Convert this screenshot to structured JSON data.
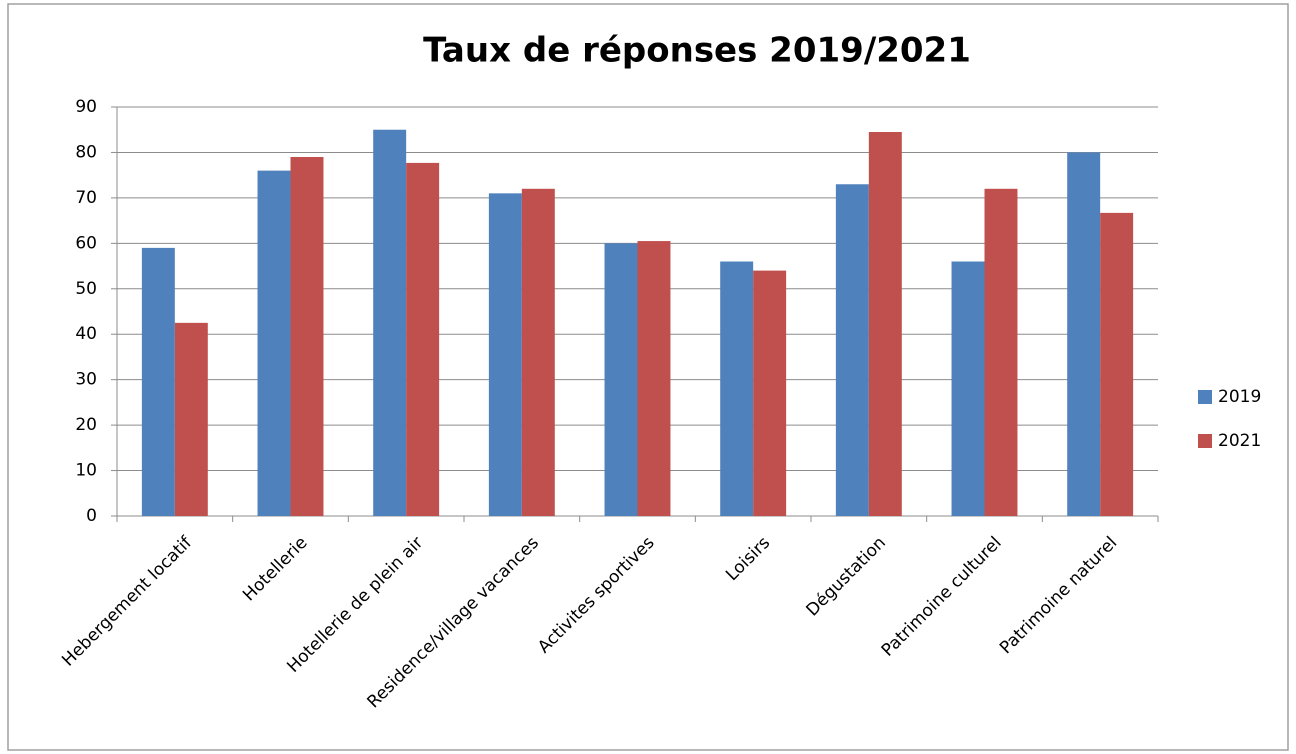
{
  "chart_data": {
    "type": "bar",
    "title": "Taux de réponses 2019/2021",
    "categories": [
      "Hebergement locatif",
      "Hotellerie",
      "Hotellerie de plein air",
      "Residence/village vacances",
      "Activites sportives",
      "Loisirs",
      "Dégustation",
      "Patrimoine culturel",
      "Patrimoine naturel"
    ],
    "series": [
      {
        "name": "2019",
        "color": "#4f81bd",
        "values": [
          59,
          76,
          85,
          71,
          60,
          56,
          73,
          56,
          80
        ]
      },
      {
        "name": "2021",
        "color": "#c0504d",
        "values": [
          42.5,
          79,
          77.7,
          72,
          60.5,
          54,
          84.5,
          72,
          66.7
        ]
      }
    ],
    "ylim": [
      0,
      90
    ],
    "yticks": [
      0,
      10,
      20,
      30,
      40,
      50,
      60,
      70,
      80,
      90
    ],
    "grid": true,
    "legend": "right"
  }
}
